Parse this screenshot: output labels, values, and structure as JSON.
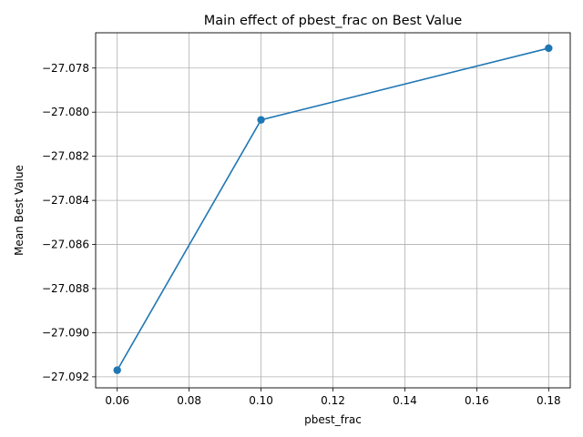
{
  "chart_data": {
    "type": "line",
    "title": "Main effect of pbest_frac on Best Value",
    "xlabel": "pbest_frac",
    "ylabel": "Mean Best Value",
    "x": [
      0.06,
      0.1,
      0.18
    ],
    "series": [
      {
        "values": [
          -27.0917,
          -27.08035,
          -27.0771
        ],
        "color": "#1f77b4",
        "marker": "circle"
      }
    ],
    "xlim": [
      0.054,
      0.186
    ],
    "ylim": [
      -27.0925,
      -27.0764
    ],
    "xticks": [
      0.06,
      0.08,
      0.1,
      0.12,
      0.14,
      0.16,
      0.18
    ],
    "xtick_labels": [
      "0.06",
      "0.08",
      "0.10",
      "0.12",
      "0.14",
      "0.16",
      "0.18"
    ],
    "yticks": [
      -27.092,
      -27.09,
      -27.088,
      -27.086,
      -27.084,
      -27.082,
      -27.08,
      -27.078
    ],
    "ytick_labels": [
      "−27.092",
      "−27.090",
      "−27.088",
      "−27.086",
      "−27.084",
      "−27.082",
      "−27.080",
      "−27.078"
    ],
    "grid": true,
    "grid_color": "#b0b0b0"
  }
}
